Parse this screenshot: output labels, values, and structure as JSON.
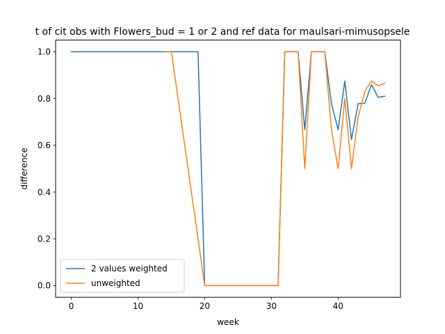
{
  "chart_data": {
    "type": "line",
    "title": "t of cit obs with Flowers_bud = 1 or 2 and ref data for maulsari-mimusopsele",
    "xlabel": "week",
    "ylabel": "difference",
    "xlim": [
      -2.35,
      49.35
    ],
    "ylim": [
      -0.05,
      1.05
    ],
    "x_ticks": [
      0,
      10,
      20,
      30,
      40
    ],
    "x_tick_labels": [
      "0",
      "10",
      "20",
      "30",
      "40"
    ],
    "y_ticks": [
      0.0,
      0.2,
      0.4,
      0.6,
      0.8,
      1.0
    ],
    "y_tick_labels": [
      "0.0",
      "0.2",
      "0.4",
      "0.6",
      "0.8",
      "1.0"
    ],
    "grid": false,
    "legend_position": "lower-left",
    "series": [
      {
        "name": "2 values weighted",
        "color": "#1f77b4",
        "x": [
          0,
          14,
          15,
          19,
          20,
          21,
          22,
          23,
          24,
          25,
          26,
          27,
          28,
          29,
          30,
          31,
          32,
          33,
          34,
          35,
          36,
          37,
          38,
          39,
          40,
          41,
          42,
          43,
          44,
          45,
          46,
          47
        ],
        "y": [
          1.0,
          1.0,
          1.0,
          1.0,
          0.0,
          0.0,
          0.0,
          0.0,
          0.0,
          0.0,
          0.0,
          0.0,
          0.0,
          0.0,
          0.0,
          0.0,
          1.0,
          1.0,
          1.0,
          0.667,
          1.0,
          1.0,
          1.0,
          0.778,
          0.667,
          0.875,
          0.625,
          0.778,
          0.78,
          0.86,
          0.805,
          0.81
        ]
      },
      {
        "name": "unweighted",
        "color": "#ff7f0e",
        "x": [
          14,
          15,
          20,
          21,
          22,
          23,
          24,
          25,
          26,
          27,
          28,
          29,
          30,
          31,
          32,
          33,
          34,
          35,
          36,
          37,
          38,
          39,
          40,
          41,
          42,
          43,
          44,
          45,
          46,
          47
        ],
        "y": [
          1.0,
          1.0,
          0.0,
          0.0,
          0.0,
          0.0,
          0.0,
          0.0,
          0.0,
          0.0,
          0.0,
          0.0,
          0.0,
          0.0,
          1.0,
          1.0,
          1.0,
          0.5,
          1.0,
          1.0,
          1.0,
          0.667,
          0.5,
          0.8,
          0.5,
          0.72,
          0.83,
          0.875,
          0.855,
          0.865
        ]
      }
    ]
  }
}
